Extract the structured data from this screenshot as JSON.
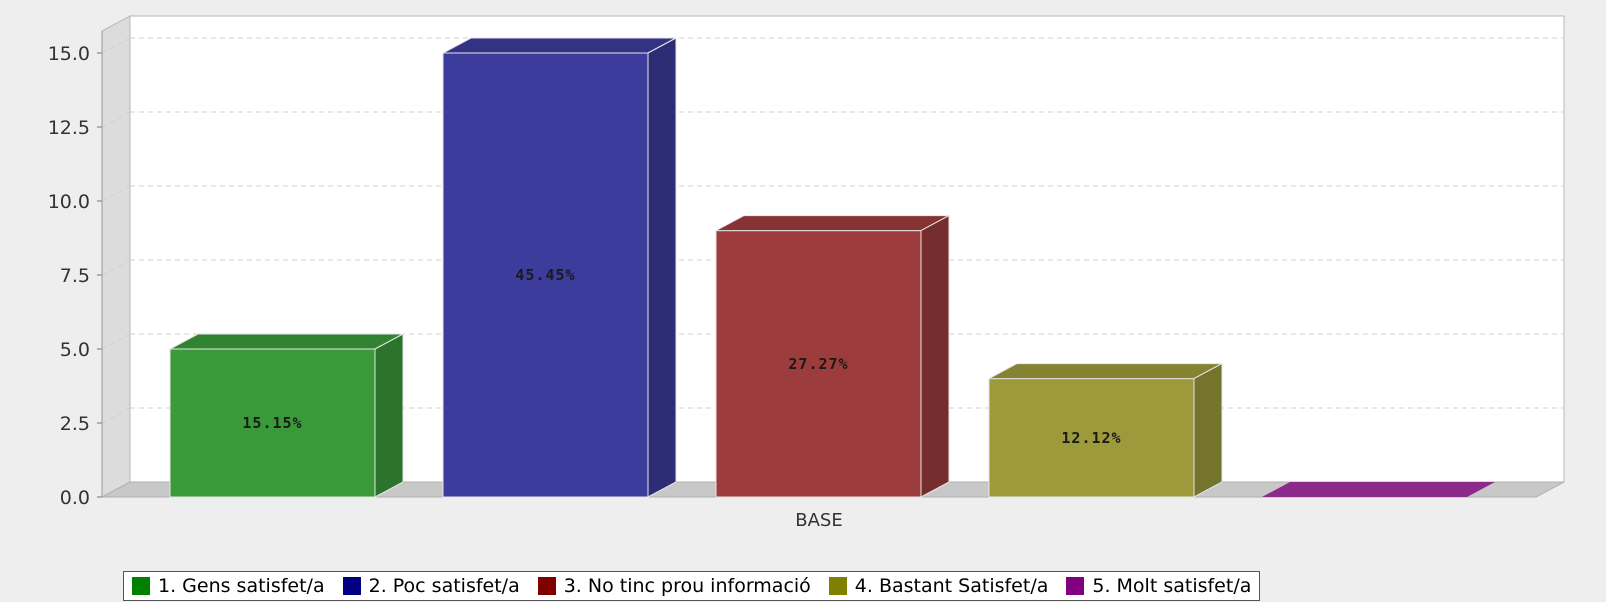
{
  "chart_data": {
    "type": "bar",
    "xlabel": "",
    "categories": [
      "BASE"
    ],
    "ylim": [
      0,
      15
    ],
    "yticks": [
      0.0,
      2.5,
      5.0,
      7.5,
      10.0,
      12.5,
      15.0
    ],
    "ytick_labels": [
      "0.0",
      "2.5",
      "5.0",
      "7.5",
      "10.0",
      "12.5",
      "15.0"
    ],
    "grid": true,
    "legend_position": "bottom",
    "series": [
      {
        "name": "1. Gens satisfet/a",
        "values": [
          5
        ],
        "label": "15.15%",
        "color": "#3a9a3a"
      },
      {
        "name": "2. Poc satisfet/a",
        "values": [
          15
        ],
        "label": "45.45%",
        "color": "#3c3c9c"
      },
      {
        "name": "3. No tinc prou informació",
        "values": [
          9
        ],
        "label": "27.27%",
        "color": "#9c3c3c"
      },
      {
        "name": "4. Bastant Satisfet/a",
        "values": [
          4
        ],
        "label": "12.12%",
        "color": "#9c9a3a"
      },
      {
        "name": "5. Molt satisfet/a",
        "values": [
          0
        ],
        "label": "",
        "color": "#8c2a8c"
      }
    ],
    "legend_colors": [
      "#008000",
      "#000080",
      "#800000",
      "#808000",
      "#800080"
    ]
  }
}
